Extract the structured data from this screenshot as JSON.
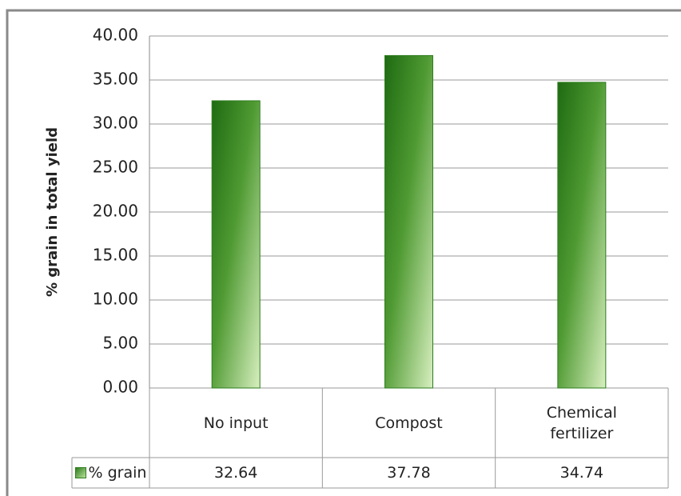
{
  "chart_data": {
    "type": "bar",
    "y_label": "% grain in total yield",
    "categories": [
      "No input",
      "Compost",
      "Chemical fertilizer"
    ],
    "series": [
      {
        "name": "% grain",
        "color": "#2e7d1e",
        "values": [
          32.64,
          37.78,
          34.74
        ]
      }
    ],
    "ylim": [
      0,
      40
    ],
    "yticks": [
      {
        "value": 0,
        "label": "0.00"
      },
      {
        "value": 5,
        "label": "5.00"
      },
      {
        "value": 10,
        "label": "10.00"
      },
      {
        "value": 15,
        "label": "15.00"
      },
      {
        "value": 20,
        "label": "20.00"
      },
      {
        "value": 25,
        "label": "25.00"
      },
      {
        "value": 30,
        "label": "30.00"
      },
      {
        "value": 35,
        "label": "35.00"
      },
      {
        "value": 40,
        "label": "40.00"
      }
    ],
    "grid": true
  }
}
